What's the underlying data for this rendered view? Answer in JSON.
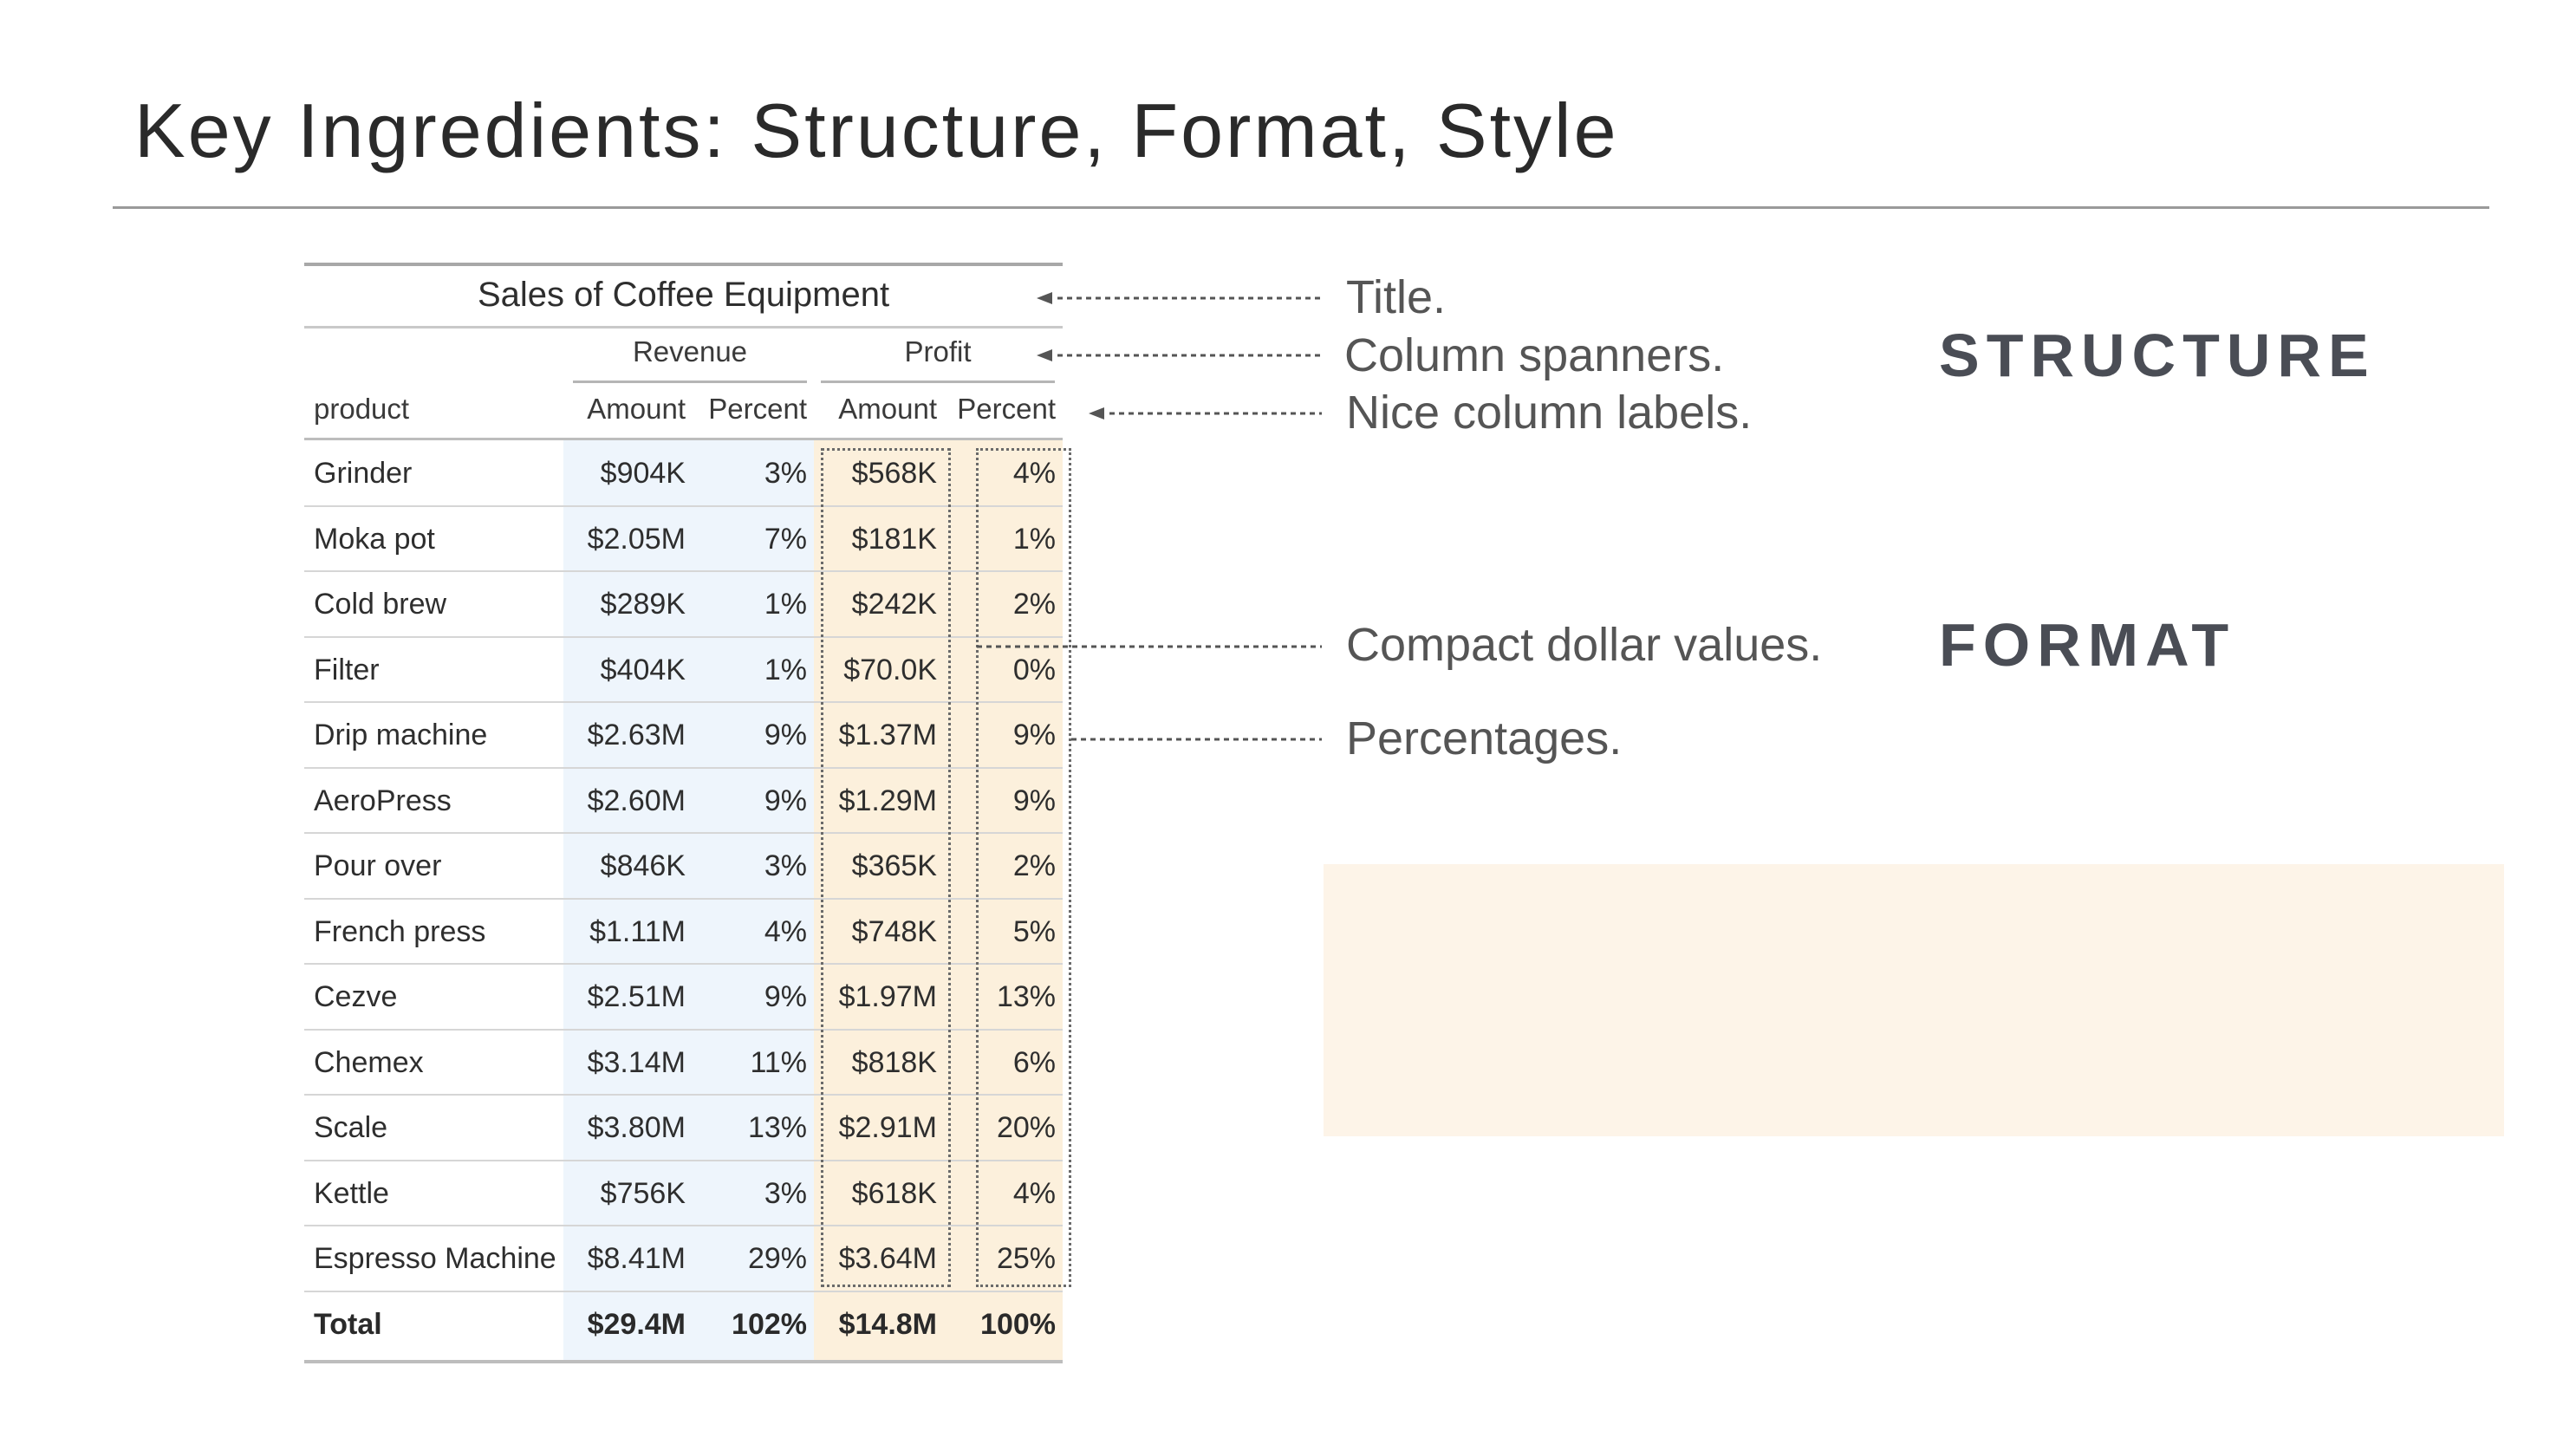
{
  "slide": {
    "title": "Key Ingredients: Structure, Format, Style"
  },
  "table": {
    "title": "Sales of Coffee Equipment",
    "spanners": [
      "Revenue",
      "Profit"
    ],
    "stub_label": "product",
    "column_labels": [
      "Amount",
      "Percent",
      "Amount",
      "Percent"
    ],
    "rows": [
      {
        "product": "Grinder",
        "rev_amount": "$904K",
        "rev_pct": "3%",
        "prof_amount": "$568K",
        "prof_pct": "4%"
      },
      {
        "product": "Moka pot",
        "rev_amount": "$2.05M",
        "rev_pct": "7%",
        "prof_amount": "$181K",
        "prof_pct": "1%"
      },
      {
        "product": "Cold brew",
        "rev_amount": "$289K",
        "rev_pct": "1%",
        "prof_amount": "$242K",
        "prof_pct": "2%"
      },
      {
        "product": "Filter",
        "rev_amount": "$404K",
        "rev_pct": "1%",
        "prof_amount": "$70.0K",
        "prof_pct": "0%"
      },
      {
        "product": "Drip machine",
        "rev_amount": "$2.63M",
        "rev_pct": "9%",
        "prof_amount": "$1.37M",
        "prof_pct": "9%"
      },
      {
        "product": "AeroPress",
        "rev_amount": "$2.60M",
        "rev_pct": "9%",
        "prof_amount": "$1.29M",
        "prof_pct": "9%"
      },
      {
        "product": "Pour over",
        "rev_amount": "$846K",
        "rev_pct": "3%",
        "prof_amount": "$365K",
        "prof_pct": "2%"
      },
      {
        "product": "French press",
        "rev_amount": "$1.11M",
        "rev_pct": "4%",
        "prof_amount": "$748K",
        "prof_pct": "5%"
      },
      {
        "product": "Cezve",
        "rev_amount": "$2.51M",
        "rev_pct": "9%",
        "prof_amount": "$1.97M",
        "prof_pct": "13%"
      },
      {
        "product": "Chemex",
        "rev_amount": "$3.14M",
        "rev_pct": "11%",
        "prof_amount": "$818K",
        "prof_pct": "6%"
      },
      {
        "product": "Scale",
        "rev_amount": "$3.80M",
        "rev_pct": "13%",
        "prof_amount": "$2.91M",
        "prof_pct": "20%"
      },
      {
        "product": "Kettle",
        "rev_amount": "$756K",
        "rev_pct": "3%",
        "prof_amount": "$618K",
        "prof_pct": "4%"
      },
      {
        "product": "Espresso Machine",
        "rev_amount": "$8.41M",
        "rev_pct": "29%",
        "prof_amount": "$3.64M",
        "prof_pct": "25%"
      }
    ],
    "total": {
      "product": "Total",
      "rev_amount": "$29.4M",
      "rev_pct": "102%",
      "prof_amount": "$14.8M",
      "prof_pct": "100%"
    }
  },
  "annotations": {
    "title": "Title.",
    "spanners": "Column spanners.",
    "labels": "Nice column labels.",
    "compact": "Compact dollar values.",
    "percentages": "Percentages."
  },
  "categories": {
    "structure": "STRUCTURE",
    "format": "FORMAT"
  },
  "colors": {
    "revenue_shade": "#eef5fc",
    "profit_shade": "#fcf0dc",
    "highlight_box": "#fdf4e8",
    "category_text": "#4a4d55"
  }
}
